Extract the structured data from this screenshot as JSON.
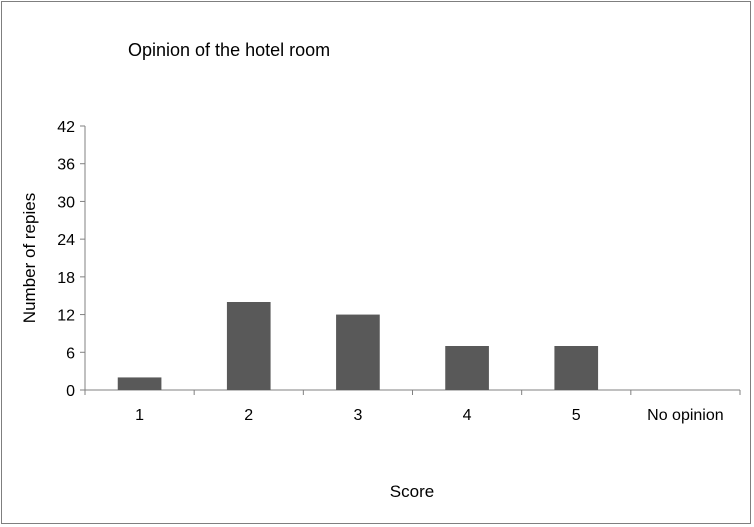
{
  "chart_data": {
    "type": "bar",
    "title": "Opinion of the hotel room",
    "xlabel": "Score",
    "ylabel": "Number of repies",
    "categories": [
      "1",
      "2",
      "3",
      "4",
      "5",
      "No opinion"
    ],
    "values": [
      2,
      14,
      12,
      7,
      7,
      0
    ],
    "ylim": [
      0,
      42
    ],
    "yticks": [
      0,
      6,
      12,
      18,
      24,
      30,
      36,
      42
    ],
    "grid": false,
    "legend": "none",
    "bar_color": "#595959",
    "axis_color": "#808080"
  }
}
